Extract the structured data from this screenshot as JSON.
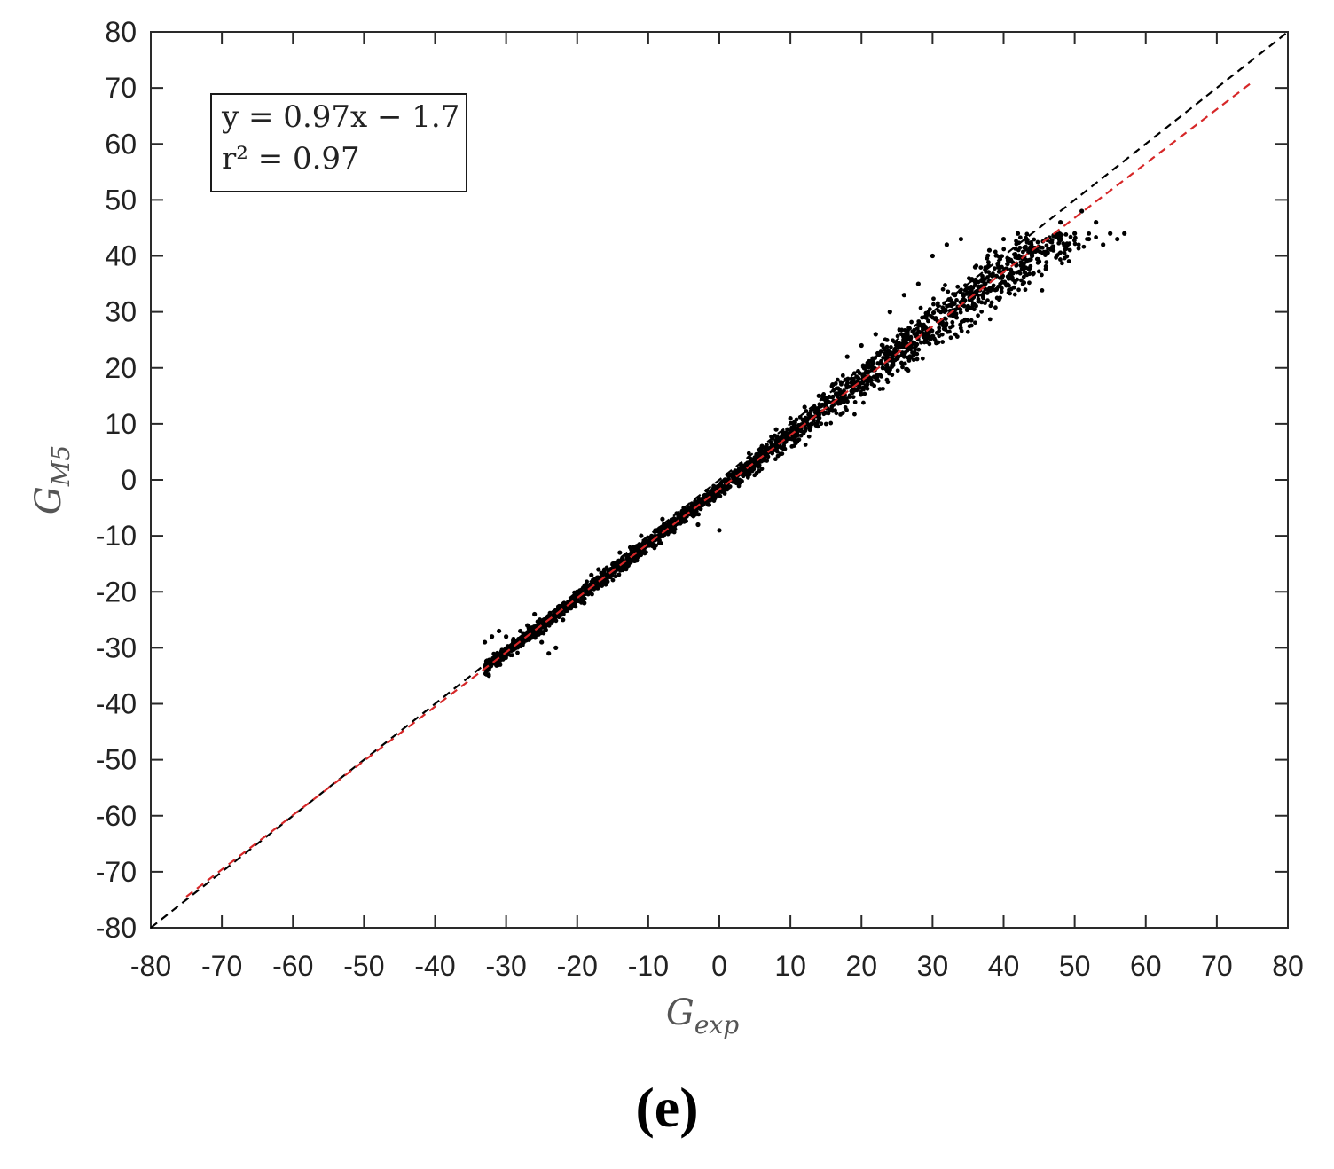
{
  "panel_label": "(e)",
  "chart_data": {
    "type": "scatter",
    "xlabel": "G",
    "xlabel_sub": "exp",
    "ylabel": "G",
    "ylabel_sub": "M5",
    "xlim": [
      -80,
      80
    ],
    "ylim": [
      -80,
      80
    ],
    "xticks": [
      "-80",
      "-70",
      "-60",
      "-50",
      "-40",
      "-30",
      "-20",
      "-10",
      "0",
      "10",
      "20",
      "30",
      "40",
      "50",
      "60",
      "70",
      "80"
    ],
    "yticks": [
      "80",
      "70",
      "60",
      "50",
      "40",
      "30",
      "20",
      "10",
      "0",
      "-10",
      "-20",
      "-30",
      "-40",
      "-50",
      "-60",
      "-70",
      "-80"
    ],
    "grid": false,
    "legend_placement": "top-left",
    "annotation": {
      "line1": "y = 0.97x − 1.7",
      "line2": "r² = 0.97"
    },
    "series": [
      {
        "type": "scatter",
        "color": "#000000",
        "x_range": [
          -33,
          57
        ],
        "trend": {
          "slope": 0.97,
          "intercept": -1.7
        },
        "points": [
          [
            -33,
            -29
          ],
          [
            -32,
            -28
          ],
          [
            -31,
            -27
          ],
          [
            -30,
            -28
          ],
          [
            -29,
            -29
          ],
          [
            -28,
            -27
          ],
          [
            -27,
            -26
          ],
          [
            -26,
            -24
          ],
          [
            -25,
            -29
          ],
          [
            -24,
            -31
          ],
          [
            -23,
            -30
          ],
          [
            -22,
            -25
          ],
          [
            -21,
            -22
          ],
          [
            -20,
            -20
          ],
          [
            -19,
            -22
          ],
          [
            -18,
            -17
          ],
          [
            -17,
            -16
          ],
          [
            -16,
            -18
          ],
          [
            -15,
            -15
          ],
          [
            -14,
            -13
          ],
          [
            -13,
            -14
          ],
          [
            -12,
            -12
          ],
          [
            -11,
            -10
          ],
          [
            -10,
            -11
          ],
          [
            -9,
            -9
          ],
          [
            -8,
            -7
          ],
          [
            -7,
            -8
          ],
          [
            -6,
            -6
          ],
          [
            -5,
            -5
          ],
          [
            -4,
            -5
          ],
          [
            -3,
            -8
          ],
          [
            -2,
            -3
          ],
          [
            -1,
            -2
          ],
          [
            0,
            -1
          ],
          [
            0,
            -9
          ],
          [
            1,
            0
          ],
          [
            2,
            1
          ],
          [
            3,
            2
          ],
          [
            4,
            3
          ],
          [
            5,
            4
          ],
          [
            6,
            6
          ],
          [
            7,
            5
          ],
          [
            8,
            9
          ],
          [
            9,
            7
          ],
          [
            10,
            11
          ],
          [
            11,
            8
          ],
          [
            12,
            13
          ],
          [
            13,
            10
          ],
          [
            14,
            15
          ],
          [
            15,
            12
          ],
          [
            16,
            17
          ],
          [
            17,
            14
          ],
          [
            18,
            22
          ],
          [
            19,
            16
          ],
          [
            20,
            24
          ],
          [
            21,
            18
          ],
          [
            22,
            26
          ],
          [
            23,
            20
          ],
          [
            24,
            30
          ],
          [
            25,
            22
          ],
          [
            26,
            33
          ],
          [
            27,
            24
          ],
          [
            28,
            35
          ],
          [
            29,
            26
          ],
          [
            30,
            40
          ],
          [
            31,
            28
          ],
          [
            32,
            42
          ],
          [
            33,
            30
          ],
          [
            34,
            43
          ],
          [
            35,
            31
          ],
          [
            36,
            38
          ],
          [
            37,
            33
          ],
          [
            38,
            41
          ],
          [
            39,
            34
          ],
          [
            40,
            43
          ],
          [
            41,
            36
          ],
          [
            42,
            44
          ],
          [
            43,
            37
          ],
          [
            44,
            40
          ],
          [
            45,
            39
          ],
          [
            46,
            43
          ],
          [
            47,
            41
          ],
          [
            48,
            46
          ],
          [
            49,
            42
          ],
          [
            50,
            44
          ],
          [
            51,
            48
          ],
          [
            52,
            43
          ],
          [
            53,
            46
          ],
          [
            54,
            42
          ],
          [
            55,
            44
          ],
          [
            56,
            43
          ],
          [
            57,
            44
          ]
        ]
      }
    ],
    "lines": [
      {
        "name": "",
        "style": "dashed",
        "color": "#000000",
        "slope": 1,
        "intercept": 0,
        "x_range": [
          -80,
          80
        ]
      },
      {
        "name": "",
        "style": "dashed",
        "color": "#d62728",
        "slope": 0.97,
        "intercept": -1.7,
        "x_range": [
          -75,
          75
        ]
      }
    ]
  }
}
